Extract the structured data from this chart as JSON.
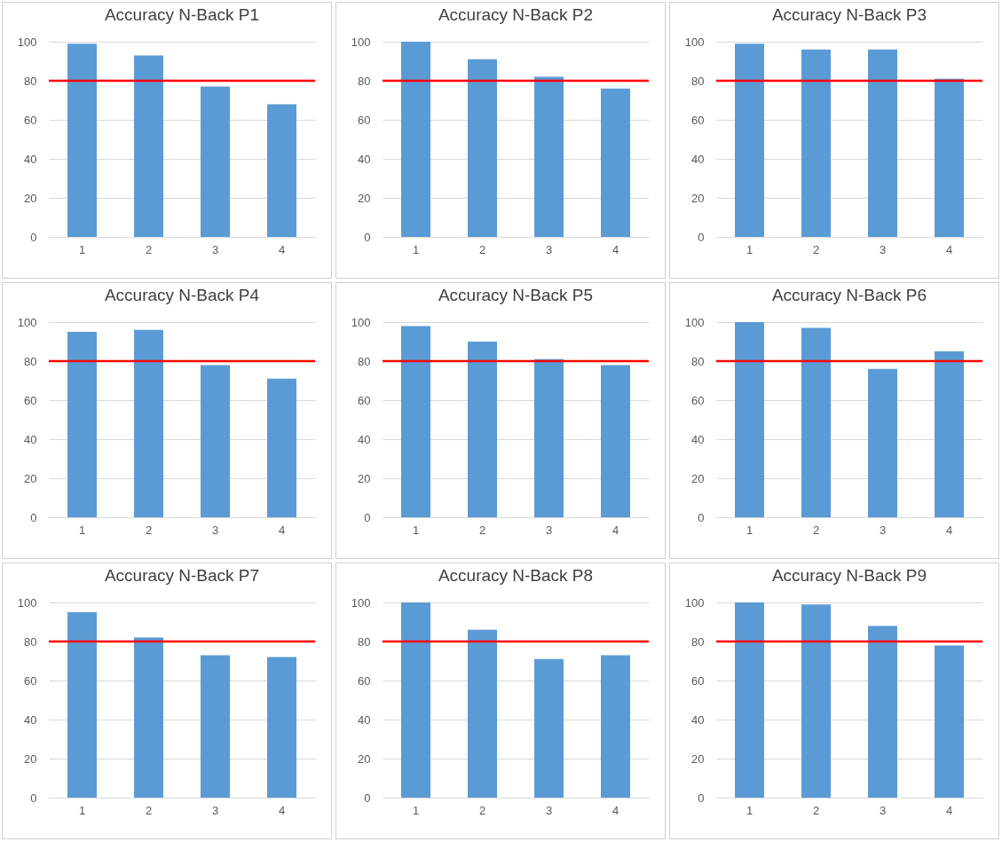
{
  "chart_data": [
    {
      "type": "bar",
      "title": "Accuracy N-Back P1",
      "categories": [
        "1",
        "2",
        "3",
        "4"
      ],
      "values": [
        99,
        93,
        77,
        68
      ],
      "color": "#5b9bd5",
      "ylim": [
        0,
        100
      ],
      "yticks": [
        0,
        20,
        40,
        60,
        80,
        100
      ],
      "grid": "y",
      "ref_lines": [
        {
          "axis": "y",
          "value": 80,
          "color": "#ff0000"
        }
      ]
    },
    {
      "type": "bar",
      "title": "Accuracy N-Back P2",
      "categories": [
        "1",
        "2",
        "3",
        "4"
      ],
      "values": [
        100,
        91,
        82,
        76
      ],
      "color": "#5b9bd5",
      "ylim": [
        0,
        100
      ],
      "yticks": [
        0,
        20,
        40,
        60,
        80,
        100
      ],
      "grid": "y",
      "ref_lines": [
        {
          "axis": "y",
          "value": 80,
          "color": "#ff0000"
        }
      ]
    },
    {
      "type": "bar",
      "title": "Accuracy N-Back P3",
      "categories": [
        "1",
        "2",
        "3",
        "4"
      ],
      "values": [
        99,
        96,
        96,
        81
      ],
      "color": "#5b9bd5",
      "ylim": [
        0,
        100
      ],
      "yticks": [
        0,
        20,
        40,
        60,
        80,
        100
      ],
      "grid": "y",
      "ref_lines": [
        {
          "axis": "y",
          "value": 80,
          "color": "#ff0000"
        }
      ]
    },
    {
      "type": "bar",
      "title": "Accuracy N-Back P4",
      "categories": [
        "1",
        "2",
        "3",
        "4"
      ],
      "values": [
        95,
        96,
        78,
        71
      ],
      "color": "#5b9bd5",
      "ylim": [
        0,
        100
      ],
      "yticks": [
        0,
        20,
        40,
        60,
        80,
        100
      ],
      "grid": "y",
      "ref_lines": [
        {
          "axis": "y",
          "value": 80,
          "color": "#ff0000"
        }
      ]
    },
    {
      "type": "bar",
      "title": "Accuracy N-Back P5",
      "categories": [
        "1",
        "2",
        "3",
        "4"
      ],
      "values": [
        98,
        90,
        81,
        78
      ],
      "color": "#5b9bd5",
      "ylim": [
        0,
        100
      ],
      "yticks": [
        0,
        20,
        40,
        60,
        80,
        100
      ],
      "grid": "y",
      "ref_lines": [
        {
          "axis": "y",
          "value": 80,
          "color": "#ff0000"
        }
      ]
    },
    {
      "type": "bar",
      "title": "Accuracy N-Back P6",
      "categories": [
        "1",
        "2",
        "3",
        "4"
      ],
      "values": [
        100,
        97,
        76,
        85
      ],
      "color": "#5b9bd5",
      "ylim": [
        0,
        100
      ],
      "yticks": [
        0,
        20,
        40,
        60,
        80,
        100
      ],
      "grid": "y",
      "ref_lines": [
        {
          "axis": "y",
          "value": 80,
          "color": "#ff0000"
        }
      ]
    },
    {
      "type": "bar",
      "title": "Accuracy N-Back P7",
      "categories": [
        "1",
        "2",
        "3",
        "4"
      ],
      "values": [
        95,
        82,
        73,
        72
      ],
      "color": "#5b9bd5",
      "ylim": [
        0,
        100
      ],
      "yticks": [
        0,
        20,
        40,
        60,
        80,
        100
      ],
      "grid": "y",
      "ref_lines": [
        {
          "axis": "y",
          "value": 80,
          "color": "#ff0000"
        }
      ]
    },
    {
      "type": "bar",
      "title": "Accuracy N-Back P8",
      "categories": [
        "1",
        "2",
        "3",
        "4"
      ],
      "values": [
        100,
        86,
        71,
        73
      ],
      "color": "#5b9bd5",
      "ylim": [
        0,
        100
      ],
      "yticks": [
        0,
        20,
        40,
        60,
        80,
        100
      ],
      "grid": "y",
      "ref_lines": [
        {
          "axis": "y",
          "value": 80,
          "color": "#ff0000"
        }
      ]
    },
    {
      "type": "bar",
      "title": "Accuracy N-Back P9",
      "categories": [
        "1",
        "2",
        "3",
        "4"
      ],
      "values": [
        100,
        99,
        88,
        78
      ],
      "color": "#5b9bd5",
      "ylim": [
        0,
        100
      ],
      "yticks": [
        0,
        20,
        40,
        60,
        80,
        100
      ],
      "grid": "y",
      "ref_lines": [
        {
          "axis": "y",
          "value": 80,
          "color": "#ff0000"
        }
      ]
    }
  ]
}
